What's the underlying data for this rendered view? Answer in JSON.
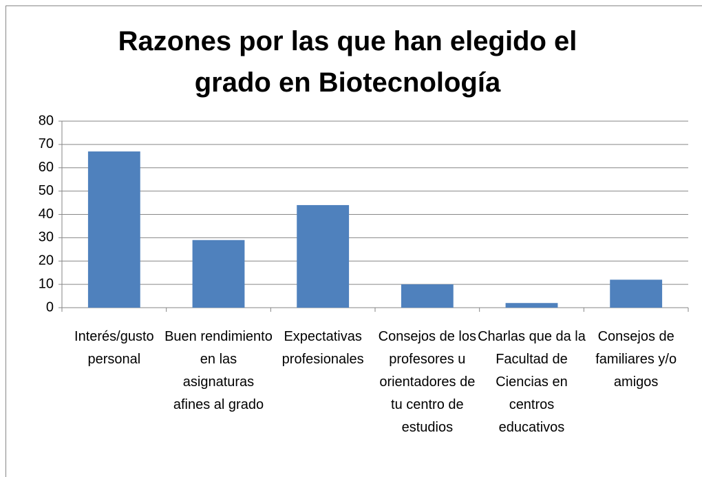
{
  "chart_data": {
    "type": "bar",
    "title": "Razones por las que han elegido el grado en Biotecnología",
    "categories": [
      "Interés/gusto personal",
      "Buen rendimiento en las asignaturas afines al grado",
      "Expectativas profesionales",
      "Consejos de los profesores u orientadores de tu centro de estudios",
      "Charlas que da la Facultad de Ciencias en centros educativos",
      "Consejos de familiares y/o amigos"
    ],
    "values": [
      67,
      29,
      44,
      10,
      2,
      12
    ],
    "color": "#4f81bd",
    "ylim": [
      0,
      80
    ],
    "yticks": [
      0,
      10,
      20,
      30,
      40,
      50,
      60,
      70,
      80
    ],
    "grid": true
  }
}
